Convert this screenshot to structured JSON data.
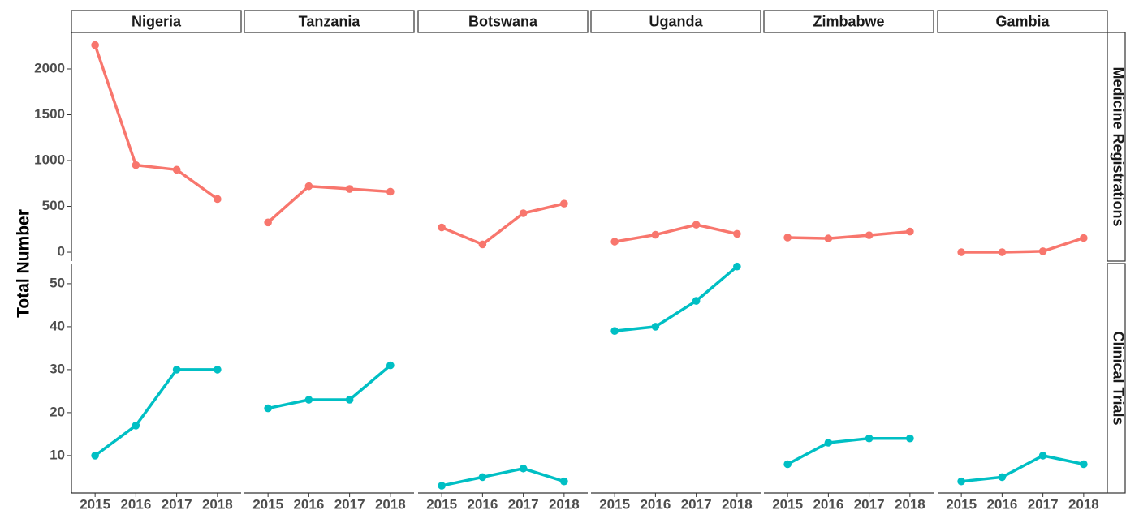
{
  "chart_data": {
    "type": "line",
    "ylabel": "Total Number",
    "x": [
      2015,
      2016,
      2017,
      2018
    ],
    "xlim": [
      2014.42,
      2018.58
    ],
    "xticks": [
      2015,
      2016,
      2017,
      2018
    ],
    "facets": [
      "Nigeria",
      "Tanzania",
      "Botswana",
      "Uganda",
      "Zimbabwe",
      "Gambia"
    ],
    "rows": [
      {
        "name": "Medicine Registrations",
        "color": "#F8766D",
        "ylim": [
          -97,
          2398
        ],
        "yticks": [
          0,
          500,
          1000,
          1500,
          2000
        ],
        "values": [
          [
            2260,
            950,
            900,
            580
          ],
          [
            325,
            720,
            690,
            660
          ],
          [
            270,
            85,
            425,
            530
          ],
          [
            115,
            190,
            300,
            200
          ],
          [
            160,
            150,
            185,
            225
          ],
          [
            0,
            0,
            10,
            155
          ]
        ]
      },
      {
        "name": "Clinical Trials",
        "color": "#00BFC4",
        "ylim": [
          1.3,
          54.7
        ],
        "yticks": [
          10,
          20,
          30,
          40,
          50
        ],
        "values": [
          [
            10,
            17,
            30,
            30
          ],
          [
            21,
            23,
            23,
            31
          ],
          [
            3,
            5,
            7,
            4
          ],
          [
            39,
            40,
            46,
            54
          ],
          [
            8,
            13,
            14,
            14
          ],
          [
            4,
            5,
            10,
            8
          ]
        ]
      }
    ]
  }
}
